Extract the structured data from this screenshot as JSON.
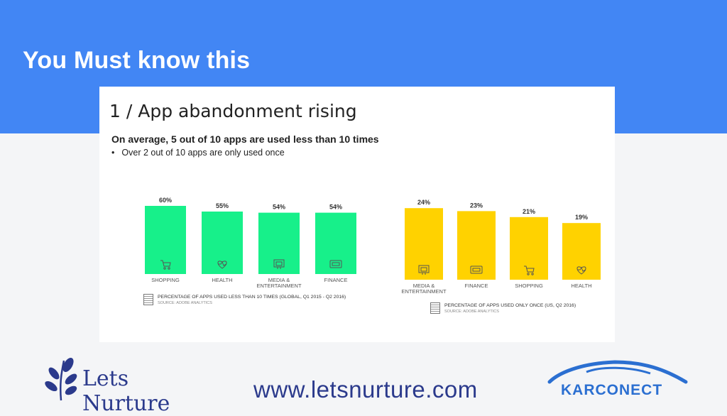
{
  "slide": {
    "title": "You Must know this",
    "url": "www.letsnurture.com"
  },
  "panel": {
    "title": "1 / App abandonment rising",
    "subtitle": "On average, 5 out of 10 apps are used less than 10 times",
    "bullet": "Over 2 out of 10 apps are only used once"
  },
  "chart_data": [
    {
      "type": "bar",
      "categories": [
        "SHOPPING",
        "HEALTH",
        "MEDIA & ENTERTAINMENT",
        "FINANCE"
      ],
      "values": [
        60,
        55,
        54,
        54
      ],
      "value_labels": [
        "60%",
        "55%",
        "54%",
        "54%"
      ],
      "icons": [
        "cart-icon",
        "heart-icon",
        "media-icon",
        "finance-icon"
      ],
      "color": "#17f08a",
      "legend": "PERCENTAGE OF APPS USED LESS THAN 10 TIMES (GLOBAL, Q1 2015 - Q2 2016)",
      "source": "SOURCE: ADOBE ANALYTICS"
    },
    {
      "type": "bar",
      "categories": [
        "MEDIA & ENTERTAINMENT",
        "FINANCE",
        "SHOPPING",
        "HEALTH"
      ],
      "values": [
        24,
        23,
        21,
        19
      ],
      "value_labels": [
        "24%",
        "23%",
        "21%",
        "19%"
      ],
      "icons": [
        "media-icon",
        "finance-icon",
        "cart-icon",
        "heart-icon"
      ],
      "color": "#ffd200",
      "legend": "PERCENTAGE OF APPS USED ONLY ONCE (US, Q2 2016)",
      "source": "SOURCE: ADOBE ANALYTICS"
    }
  ],
  "logos": {
    "lets_nurture": "Lets Nurture",
    "karconect": "KARCONECT"
  }
}
